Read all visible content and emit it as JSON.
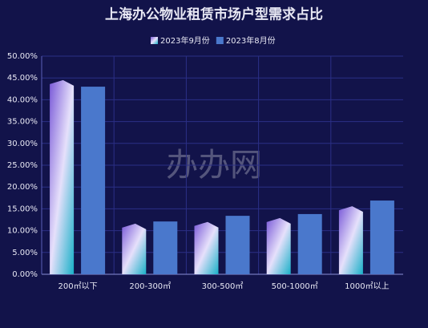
{
  "chart_data": {
    "type": "bar",
    "title": "上海办公物业租赁市场户型需求占比",
    "watermark": "办办网",
    "categories": [
      "200㎡以下",
      "200-300㎡",
      "300-500㎡",
      "500-1000㎡",
      "1000㎡以上"
    ],
    "series": [
      {
        "name": "2023年9月份",
        "color": "#6a8fe0",
        "values": [
          44.5,
          11.6,
          12.0,
          12.9,
          15.6
        ]
      },
      {
        "name": "2023年8月份",
        "color": "#4a78cc",
        "values": [
          43.0,
          12.1,
          13.4,
          13.8,
          16.9
        ]
      }
    ],
    "ylim": [
      0,
      50
    ],
    "yticks": [
      {
        "value": 0,
        "label": "0.00%"
      },
      {
        "value": 5,
        "label": "5.00%"
      },
      {
        "value": 10,
        "label": "10.00%"
      },
      {
        "value": 15,
        "label": "15.00%"
      },
      {
        "value": 20,
        "label": "20.00%"
      },
      {
        "value": 25,
        "label": "25.00%"
      },
      {
        "value": 30,
        "label": "30.00%"
      },
      {
        "value": 35,
        "label": "35.00%"
      },
      {
        "value": 40,
        "label": "40.00%"
      },
      {
        "value": 45,
        "label": "45.00%"
      },
      {
        "value": 50,
        "label": "50.00%"
      }
    ],
    "grid": true
  }
}
